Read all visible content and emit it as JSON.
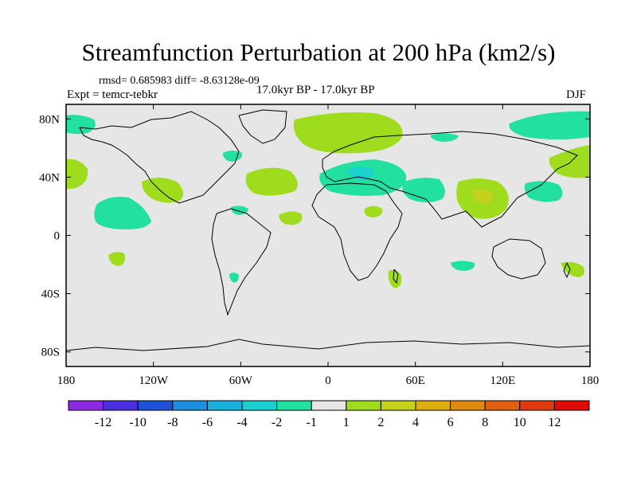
{
  "title": "Streamfunction Perturbation at 200 hPa (km2/s)",
  "stats_line": "rmsd= 0.685983 diff= -8.63128e-09",
  "left_label": "Expt = temcr-tebkr",
  "center_label": "17.0kyr BP - 17.0kyr BP",
  "right_label": "DJF",
  "map": {
    "lon_ticks": [
      "180",
      "120W",
      "60W",
      "0",
      "60E",
      "120E",
      "180"
    ],
    "lat_ticks": [
      "80N",
      "40N",
      "0",
      "40S",
      "80S"
    ],
    "background_color": "#e6e6e6",
    "anomalies": [
      {
        "region": "Arctic Atlantic",
        "level": "-2"
      },
      {
        "region": "Northern Europe / Arctic Russia",
        "level": "1"
      },
      {
        "region": "Arctic Pacific",
        "level": "-2"
      },
      {
        "region": "Eurasia Arctic edge",
        "level": "-2"
      },
      {
        "region": "NE Pacific",
        "level": "1"
      },
      {
        "region": "Gulf of Mexico / Mexico",
        "level": "1"
      },
      {
        "region": "North Atlantic",
        "level": "1"
      },
      {
        "region": "Mediterranean / Middle East",
        "level": "-2"
      },
      {
        "region": "Mediterranean core",
        "level": "-4"
      },
      {
        "region": "Arabian Sea / India",
        "level": "-2"
      },
      {
        "region": "East Asia",
        "level": "1"
      },
      {
        "region": "South China",
        "level": "2"
      },
      {
        "region": "NW Pacific",
        "level": "1"
      },
      {
        "region": "West Pacific",
        "level": "-2"
      },
      {
        "region": "Tropical East Pacific",
        "level": "-2"
      },
      {
        "region": "Caribbean",
        "level": "-2"
      },
      {
        "region": "West Africa",
        "level": "1"
      },
      {
        "region": "East Africa",
        "level": "1"
      },
      {
        "region": "South Pacific",
        "level": "1"
      },
      {
        "region": "South America",
        "level": "-2"
      },
      {
        "region": "Madagascar",
        "level": "1"
      },
      {
        "region": "Indian Ocean",
        "level": "-2"
      },
      {
        "region": "New Zealand",
        "level": "1"
      }
    ]
  },
  "colorbar": {
    "labels": [
      "-12",
      "-10",
      "-8",
      "-6",
      "-4",
      "-2",
      "-1",
      "1",
      "2",
      "4",
      "6",
      "8",
      "10",
      "12"
    ],
    "colors": [
      "#8a2be2",
      "#4a2ee0",
      "#1f52d8",
      "#1b8fe0",
      "#18b0df",
      "#1cd0d0",
      "#22e0a0",
      "#e6e6e6",
      "#9fdc1e",
      "#c4d21c",
      "#dcb010",
      "#e08a10",
      "#e06010",
      "#e03a10",
      "#e00a0a"
    ]
  }
}
